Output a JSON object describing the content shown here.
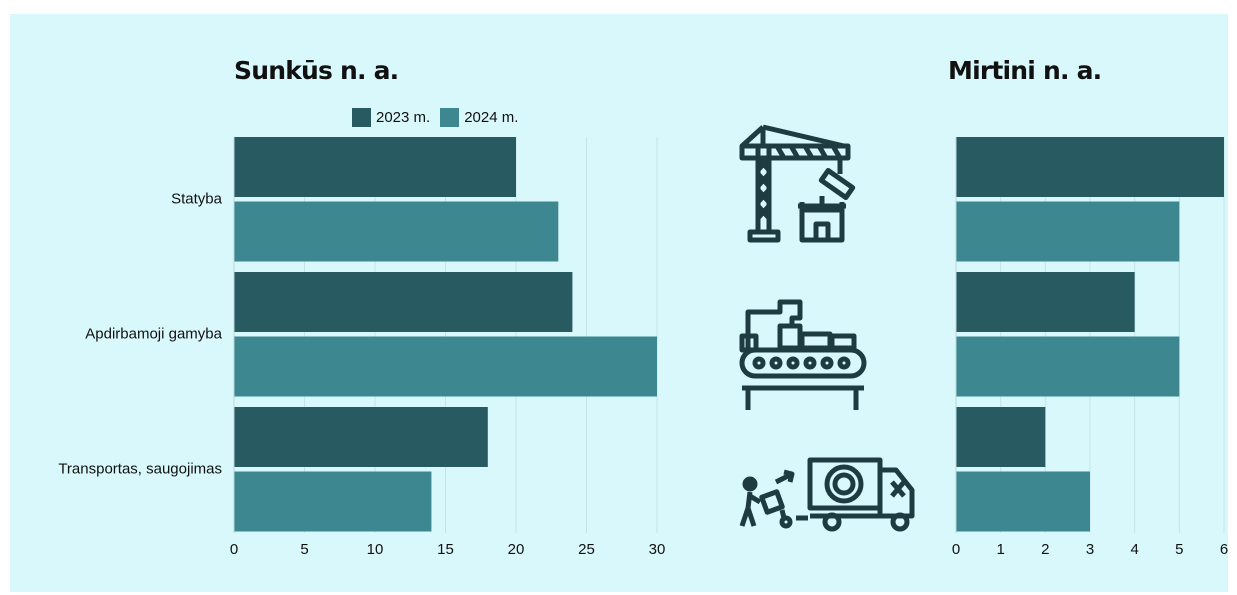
{
  "colors": {
    "background": "#d9f8fc",
    "series_2023": "#285a61",
    "series_2024": "#3d8790"
  },
  "legend": {
    "series_2023": "2023 m.",
    "series_2024": "2024 m."
  },
  "icons": {
    "construction": "tower-crane-icon",
    "manufacturing": "conveyor-belt-factory-icon",
    "transport": "delivery-truck-icon"
  },
  "chart_data": [
    {
      "type": "bar",
      "orientation": "horizontal",
      "title": "Sunkūs n. a.",
      "categories": [
        "Statyba",
        "Apdirbamoji gamyba",
        "Transportas, saugojimas"
      ],
      "series": [
        {
          "name": "2023 m.",
          "values": [
            20,
            24,
            18
          ]
        },
        {
          "name": "2024 m.",
          "values": [
            23,
            30,
            14
          ]
        }
      ],
      "xlim": [
        0,
        30
      ],
      "xticks": [
        0,
        5,
        10,
        15,
        20,
        25,
        30
      ],
      "grid": true,
      "legend": "top"
    },
    {
      "type": "bar",
      "orientation": "horizontal",
      "title": "Mirtini n. a.",
      "categories": [
        "Statyba",
        "Apdirbamoji gamyba",
        "Transportas, saugojimas"
      ],
      "series": [
        {
          "name": "2023 m.",
          "values": [
            6,
            4,
            2
          ]
        },
        {
          "name": "2024 m.",
          "values": [
            5,
            5,
            3
          ]
        }
      ],
      "xlim": [
        0,
        6
      ],
      "xticks": [
        0,
        1,
        2,
        3,
        4,
        5,
        6
      ],
      "grid": true,
      "legend": "none"
    }
  ]
}
